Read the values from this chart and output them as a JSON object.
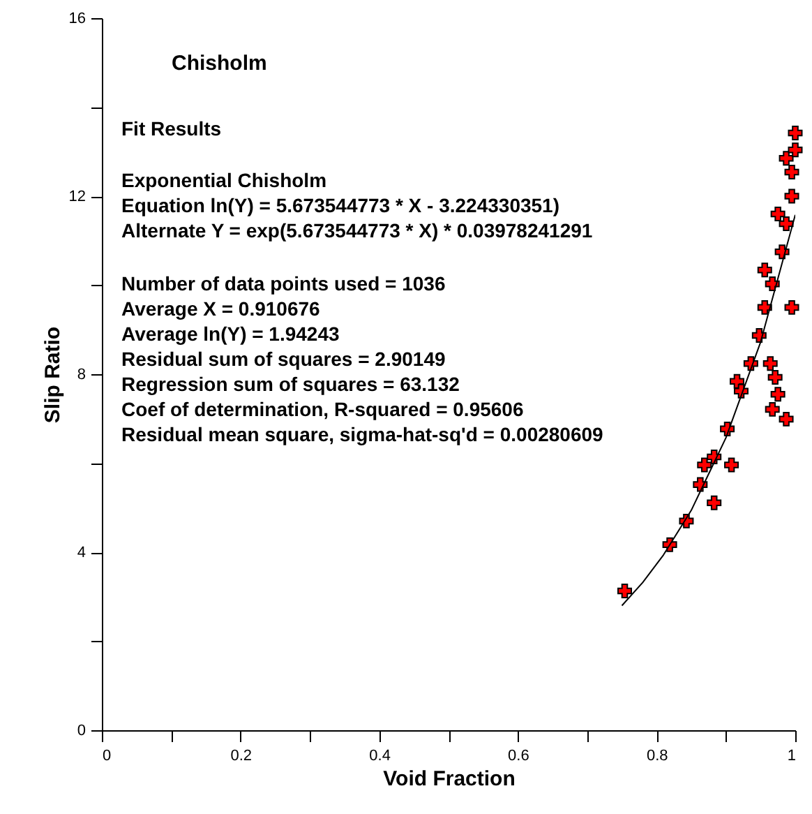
{
  "chart_data": {
    "type": "scatter",
    "title": "Chisholm",
    "xlabel": "Void Fraction",
    "ylabel": "Slip Ratio",
    "annotations": [
      "Fit Results",
      "Exponential Chisholm",
      "Equation ln(Y) = 5.673544773 * X - 3.224330351)",
      "Alternate Y = exp(5.673544773 * X) * 0.03978241291",
      "Number of data points used = 1036",
      "Average X = 0.910676",
      "Average ln(Y) = 1.94243",
      "Residual sum of squares = 2.90149",
      "Regression sum of squares = 63.132",
      "Coef of determination, R-squared = 0.95606",
      "Residual mean square, sigma-hat-sq'd = 0.00280609"
    ],
    "xlim": [
      0,
      1
    ],
    "ylim": [
      0,
      16
    ],
    "xticks": [
      0,
      {
        "value": 0.1,
        "label": null
      },
      0.2,
      {
        "value": 0.3,
        "label": null
      },
      0.4,
      {
        "value": 0.5,
        "label": null
      },
      0.6,
      {
        "value": 0.7,
        "label": null
      },
      0.8,
      {
        "value": 0.9,
        "label": null
      },
      1
    ],
    "yticks": [
      0,
      {
        "value": 2,
        "label": null
      },
      4,
      {
        "value": 6,
        "label": null
      },
      8,
      {
        "value": 10,
        "label": null
      },
      12,
      {
        "value": 14,
        "label": null
      },
      16
    ],
    "grid": false,
    "series": [
      {
        "type": "line",
        "color": "#000000",
        "marker": "none",
        "x": [
          0.75,
          0.78,
          0.81,
          0.85,
          0.9,
          0.95,
          1.0
        ],
        "values": [
          2.8,
          3.32,
          3.94,
          4.94,
          6.57,
          8.72,
          11.58
        ]
      },
      {
        "type": "scatter",
        "color": "#ff0000",
        "marker": "cross",
        "x": [
          0.754,
          0.819,
          0.843,
          0.863,
          0.869,
          0.883,
          0.883,
          0.902,
          0.908,
          0.916,
          0.922,
          0.936,
          0.948,
          0.956,
          0.956,
          0.964,
          0.967,
          0.971,
          0.975,
          0.967,
          0.987,
          0.981,
          0.987,
          0.975,
          0.995,
          0.995,
          0.995,
          0.987,
          1.0,
          1.0
        ],
        "values": [
          3.13,
          4.17,
          4.7,
          5.52,
          5.96,
          6.14,
          5.11,
          6.77,
          5.96,
          7.84,
          7.62,
          8.24,
          8.87,
          9.5,
          10.34,
          8.24,
          10.03,
          7.93,
          7.55,
          7.21,
          6.99,
          10.75,
          11.38,
          11.6,
          12.0,
          9.5,
          12.54,
          12.85,
          13.04,
          13.42
        ]
      }
    ]
  }
}
